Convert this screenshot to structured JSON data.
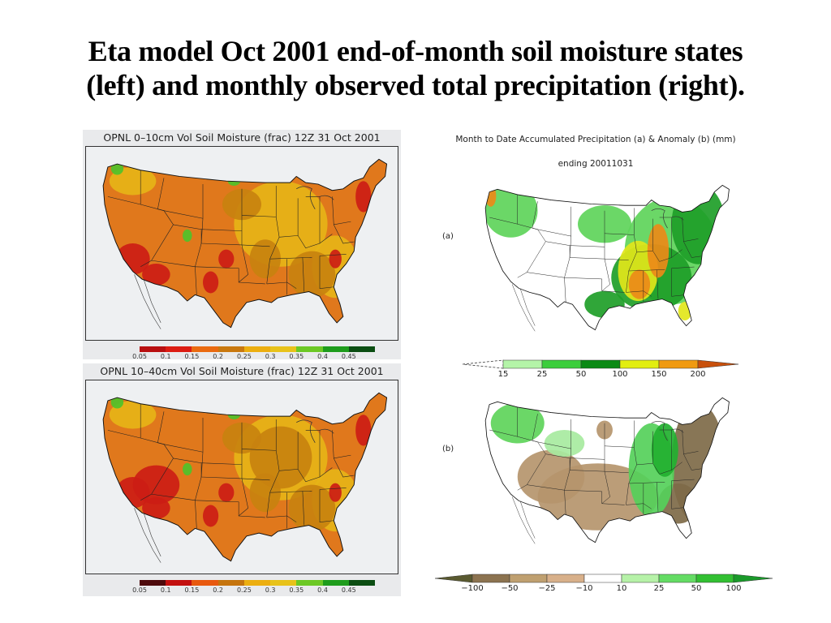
{
  "slide": {
    "title_line1": "Eta model Oct 2001 end-of-month soil moisture states",
    "title_line2": "(left) and monthly observed total precipitation (right)."
  },
  "left_panels": [
    {
      "title": "OPNL 0–10cm Vol Soil Moisture (frac) 12Z 31 Oct 2001",
      "colorbar": {
        "labels": [
          "0.05",
          "0.1",
          "0.15",
          "0.2",
          "0.25",
          "0.3",
          "0.35",
          "0.4",
          "0.45"
        ],
        "colors": [
          "#b80f10",
          "#dc1c12",
          "#ea6a10",
          "#c9780e",
          "#ecae10",
          "#e8c21a",
          "#6cc825",
          "#1e9c1c",
          "#0b4d12"
        ]
      }
    },
    {
      "title": "OPNL 10–40cm Vol Soil Moisture (frac) 12Z 31 Oct 2001",
      "colorbar": {
        "labels": [
          "0.05",
          "0.1",
          "0.15",
          "0.2",
          "0.25",
          "0.3",
          "0.35",
          "0.4",
          "0.45"
        ],
        "colors": [
          "#4e0a0c",
          "#c3100f",
          "#e8590f",
          "#c5740e",
          "#ecae10",
          "#e8c21a",
          "#6cc825",
          "#1e9c1c",
          "#0b4d12"
        ]
      }
    }
  ],
  "right_panel": {
    "title": "Month to Date Accumulated Precipitation (a) & Anomaly (b) (mm)",
    "subtitle": "ending 20011031",
    "panel_a_label": "(a)",
    "panel_b_label": "(b)",
    "colorbar_a": {
      "labels": [
        "15",
        "25",
        "50",
        "100",
        "150",
        "200"
      ],
      "colors": [
        "#b4f4a8",
        "#3cce3c",
        "#0a8a14",
        "#e2ee10",
        "#f09a10",
        "#c8500c"
      ]
    },
    "colorbar_b": {
      "labels": [
        "−100",
        "−50",
        "−25",
        "−10",
        "10",
        "25",
        "50",
        "100"
      ],
      "colors": [
        "#5a5a30",
        "#8c7350",
        "#bfa070",
        "#d8b08a",
        "#ffffff",
        "#b6f2a8",
        "#64dc64",
        "#32c032",
        "#1a9a2a"
      ]
    }
  },
  "map_colors": {
    "soil_base": "#e0781c",
    "soil_wet": "#e6b417",
    "soil_dry": "#cc1d15",
    "soil_mid": "#c8820f",
    "soil_green": "#4fc22a",
    "precip_light": "#5ed45a",
    "precip_mid": "#1e9e28",
    "precip_high_yellow": "#e2e61a",
    "precip_high_orange": "#ec8a18",
    "anom_dry": "#b5956c",
    "anom_drier": "#7e6a48",
    "anom_wet": "#55d05a"
  }
}
